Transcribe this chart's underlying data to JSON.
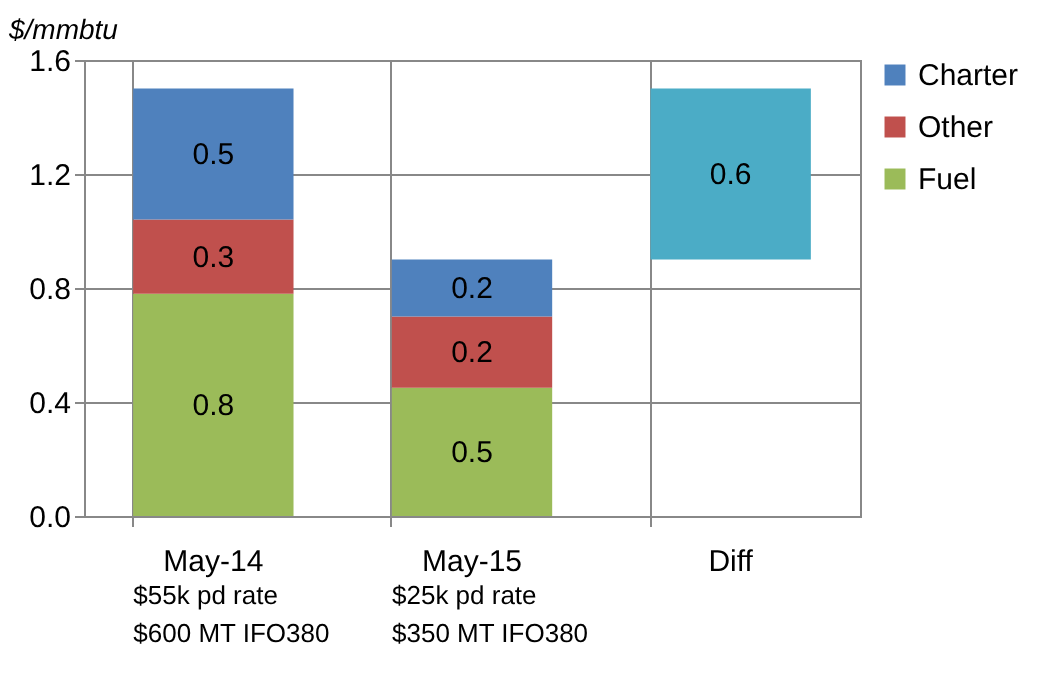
{
  "chart_data": {
    "type": "bar",
    "stacked": true,
    "ylabel": "$/mmbtu",
    "categories": [
      "May-14",
      "May-15",
      "Diff"
    ],
    "series": [
      {
        "name": "Fuel",
        "color": "#9bbb59",
        "values": [
          0.78,
          0.45,
          null
        ],
        "value_labels": [
          "0.8",
          "0.5",
          null
        ]
      },
      {
        "name": "Other",
        "color": "#c0504d",
        "values": [
          0.26,
          0.25,
          null
        ],
        "value_labels": [
          "0.3",
          "0.2",
          null
        ]
      },
      {
        "name": "Charter",
        "color": "#4f81bd",
        "values": [
          0.46,
          0.2,
          null
        ],
        "value_labels": [
          "0.5",
          "0.2",
          null
        ]
      },
      {
        "color": "#4bacc6",
        "values": [
          null,
          null,
          0.6
        ],
        "base": [
          null,
          null,
          0.9
        ],
        "value_labels": [
          null,
          null,
          "0.6"
        ]
      }
    ],
    "ylim": [
      0,
      1.6
    ],
    "yticks": [
      {
        "value": 0,
        "label": "0.0"
      },
      {
        "value": 0.4,
        "label": "0.4"
      },
      {
        "value": 0.8,
        "label": "0.8"
      },
      {
        "value": 1.2,
        "label": "1.2"
      },
      {
        "value": 1.6,
        "label": "1.6"
      }
    ],
    "grid": true,
    "legend": "right",
    "annotations": [
      "$55k pd rate\n$600 MT IFO380",
      "$25k pd rate\n$350 MT IFO380"
    ]
  }
}
